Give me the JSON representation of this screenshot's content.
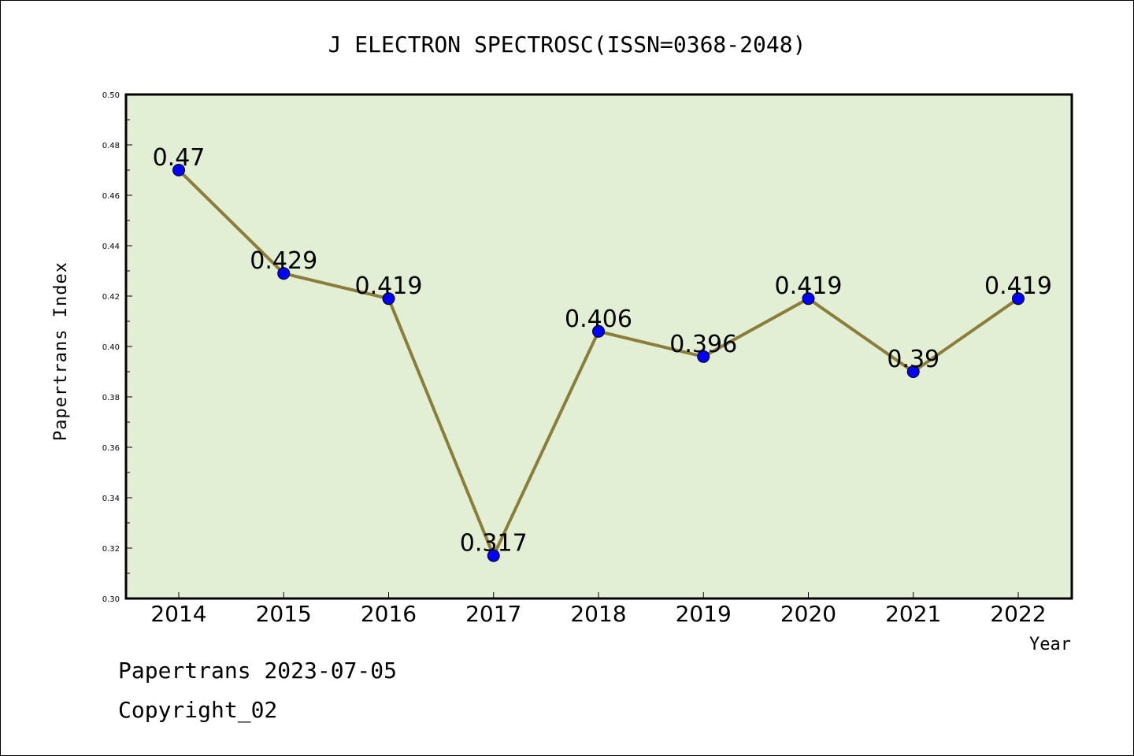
{
  "chart_data": {
    "type": "line",
    "title": "J ELECTRON SPECTROSC(ISSN=0368-2048)",
    "xlabel": "Year",
    "ylabel": "Papertrans Index",
    "categories": [
      "2014",
      "2015",
      "2016",
      "2017",
      "2018",
      "2019",
      "2020",
      "2021",
      "2022"
    ],
    "series": [
      {
        "values": [
          0.47,
          0.429,
          0.419,
          0.317,
          0.406,
          0.396,
          0.419,
          0.39,
          0.419
        ],
        "labels": [
          "0.47",
          "0.429",
          "0.419",
          "0.317",
          "0.406",
          "0.396",
          "0.419",
          "0.39",
          "0.419"
        ]
      }
    ],
    "ylim": [
      0.3,
      0.5
    ],
    "yticks": [
      "0.30",
      "0.32",
      "0.34",
      "0.36",
      "0.38",
      "0.40",
      "0.42",
      "0.44",
      "0.46",
      "0.48",
      "0.50"
    ],
    "grid": false,
    "colors": {
      "plot_background": "#e2efd4",
      "line": "#8b7d3a",
      "marker": "#0000ff"
    }
  },
  "footer": {
    "date_line": "Papertrans 2023-07-05",
    "copyright": "Copyright_02"
  }
}
